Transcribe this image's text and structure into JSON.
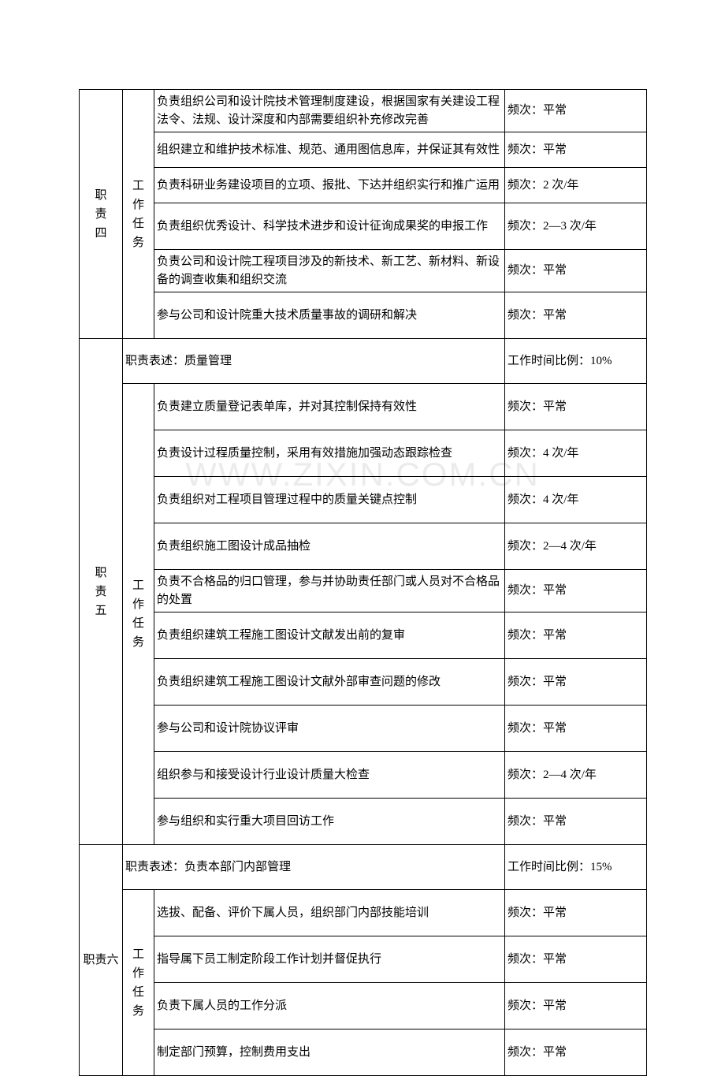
{
  "watermark": "WWW.ZIXIN.COM.CN",
  "sections": [
    {
      "id": "four",
      "label": "职责四",
      "taskLabel": "工作任务",
      "rows": [
        {
          "desc": "负责组织公司和设计院技术管理制度建设，根据国家有关建设工程法令、法规、设计深度和内部需要组织补充修改完善",
          "freq": "频次：平常"
        },
        {
          "desc": "组织建立和维护技术标准、规范、通用图信息库，并保证其有效性",
          "freq": "频次：平常"
        },
        {
          "desc": "负责科研业务建设项目的立项、报批、下达并组织实行和推广运用",
          "freq": "频次：2 次/年"
        },
        {
          "desc": "负责组织优秀设计、科学技术进步和设计征询成果奖的申报工作",
          "freq": "频次：2—3 次/年"
        },
        {
          "desc": "负责公司和设计院工程项目涉及的新技术、新工艺、新材料、新设备的调查收集和组织交流",
          "freq": "频次：平常"
        },
        {
          "desc": "参与公司和设计院重大技术质量事故的调研和解决",
          "freq": "频次：平常"
        }
      ]
    },
    {
      "id": "five",
      "label": "职责五",
      "header": "职责表述：质量管理",
      "headerRight": "工作时间比例：10%",
      "taskLabel": "工作任务",
      "rows": [
        {
          "desc": "负责建立质量登记表单库，并对其控制保持有效性",
          "freq": "频次：平常"
        },
        {
          "desc": "负责设计过程质量控制，采用有效措施加强动态跟踪检查",
          "freq": "频次：4 次/年"
        },
        {
          "desc": "负责组织对工程项目管理过程中的质量关键点控制",
          "freq": "频次：4 次/年"
        },
        {
          "desc": "负责组织施工图设计成品抽检",
          "freq": "频次：2—4 次/年"
        },
        {
          "desc": "负责不合格品的归口管理，参与并协助责任部门或人员对不合格品的处置",
          "freq": "频次：平常"
        },
        {
          "desc": "负责组织建筑工程施工图设计文献发出前的复审",
          "freq": "频次：平常"
        },
        {
          "desc": "负责组织建筑工程施工图设计文献外部审查问题的修改",
          "freq": "频次：平常"
        },
        {
          "desc": "参与公司和设计院协议评审",
          "freq": "频次：平常"
        },
        {
          "desc": "组织参与和接受设计行业设计质量大检查",
          "freq": "频次：2—4 次/年"
        },
        {
          "desc": "参与组织和实行重大项目回访工作",
          "freq": "频次：平常"
        }
      ]
    },
    {
      "id": "six",
      "label": "职责六",
      "header": "职责表述：负责本部门内部管理",
      "headerRight": "工作时间比例：15%",
      "taskLabel": "工作任务",
      "rows": [
        {
          "desc": "选拔、配备、评价下属人员，组织部门内部技能培训",
          "freq": "频次：平常"
        },
        {
          "desc": "指导属下员工制定阶段工作计划并督促执行",
          "freq": "频次：平常"
        },
        {
          "desc": "负责下属人员的工作分派",
          "freq": "频次：平常"
        },
        {
          "desc": "制定部门预算，控制费用支出",
          "freq": "频次：平常"
        }
      ]
    }
  ]
}
